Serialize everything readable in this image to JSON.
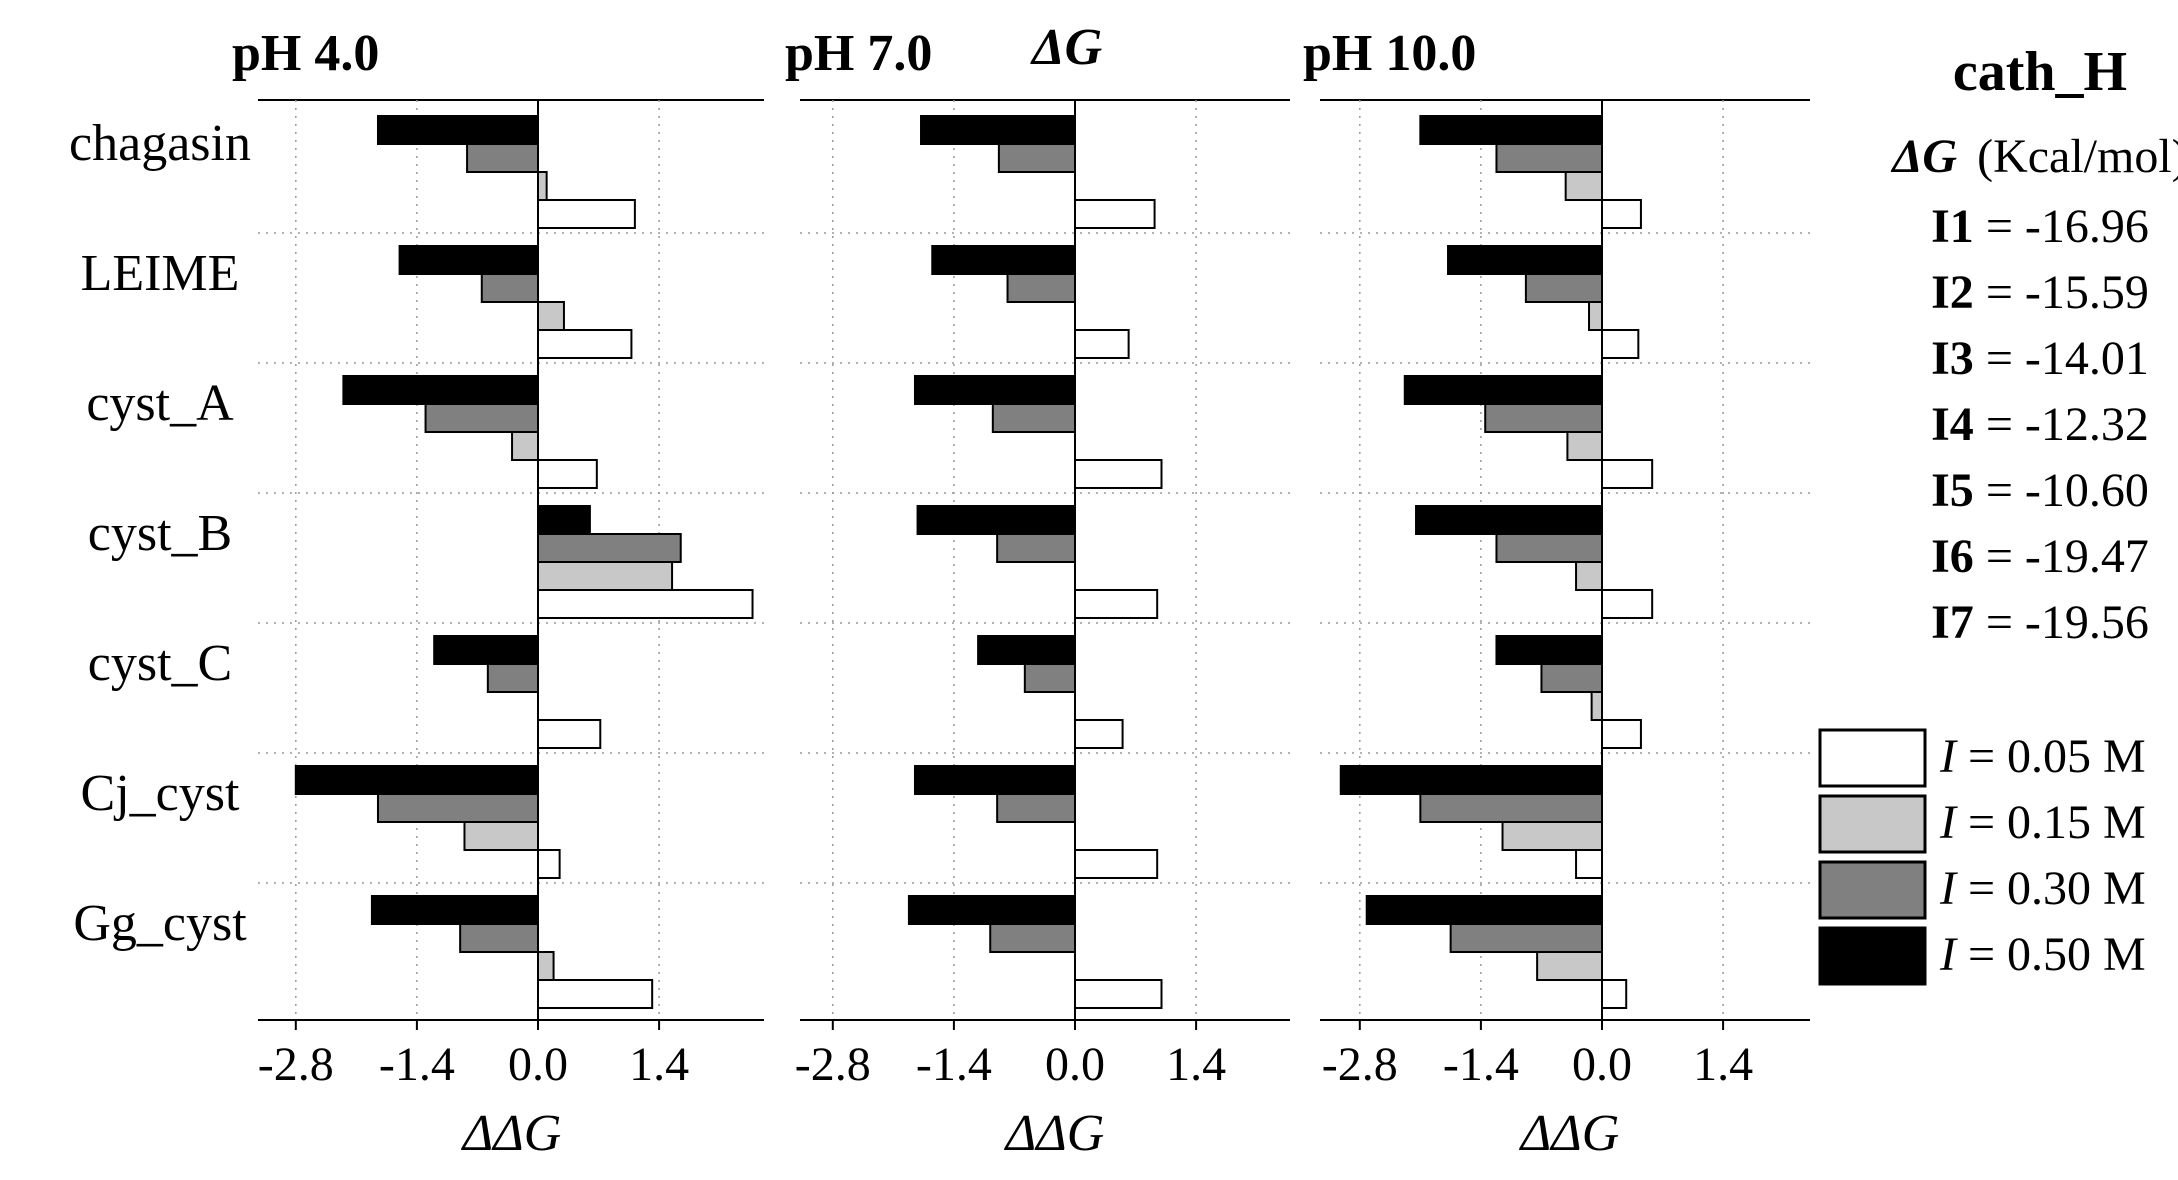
{
  "chart_data": [
    {
      "type": "bar",
      "orientation": "horizontal",
      "title": "pH 4.0",
      "xlabel": "ΔΔG",
      "xlim": [
        -3.0,
        2.5
      ],
      "xticks": [
        "-2.8",
        "-1.4",
        "0.0",
        "1.4"
      ],
      "categories": [
        "chagasin",
        "LEIME",
        "cyst_A",
        "cyst_B",
        "cyst_C",
        "Cj_cyst",
        "Gg_cyst"
      ],
      "series": [
        {
          "name": "I = 0.50 M",
          "values": [
            -1.85,
            -1.6,
            -2.25,
            0.6,
            -1.2,
            -2.8,
            -1.92
          ]
        },
        {
          "name": "I = 0.30 M",
          "values": [
            -0.82,
            -0.65,
            -1.3,
            1.65,
            -0.58,
            -1.85,
            -0.9
          ]
        },
        {
          "name": "I = 0.15 M",
          "values": [
            0.1,
            0.3,
            -0.3,
            1.55,
            0.0,
            -0.85,
            0.18
          ]
        },
        {
          "name": "I = 0.05 M",
          "values": [
            1.12,
            1.08,
            0.68,
            2.48,
            0.72,
            0.25,
            1.32
          ]
        }
      ]
    },
    {
      "type": "bar",
      "orientation": "horizontal",
      "title": "pH 7.0",
      "title2": "ΔG",
      "xlabel": "ΔΔG",
      "xlim": [
        -3.0,
        2.5
      ],
      "xticks": [
        "-2.8",
        "-1.4",
        "0.0",
        "1.4"
      ],
      "categories": [
        "chagasin",
        "LEIME",
        "cyst_A",
        "cyst_B",
        "cyst_C",
        "Cj_cyst",
        "Gg_cyst"
      ],
      "series": [
        {
          "name": "I = 0.50 M",
          "values": [
            -1.78,
            -1.65,
            -1.85,
            -1.82,
            -1.12,
            -1.85,
            -1.92
          ]
        },
        {
          "name": "I = 0.30 M",
          "values": [
            -0.88,
            -0.78,
            -0.95,
            -0.9,
            -0.58,
            -0.9,
            -0.98
          ]
        },
        {
          "name": "I = 0.15 M",
          "values": [
            0.0,
            0.0,
            0.0,
            0.0,
            0.0,
            0.0,
            0.0
          ]
        },
        {
          "name": "I = 0.05 M",
          "values": [
            0.92,
            0.62,
            1.0,
            0.95,
            0.55,
            0.95,
            1.0
          ]
        }
      ]
    },
    {
      "type": "bar",
      "orientation": "horizontal",
      "title": "pH 10.0",
      "xlabel": "ΔΔG",
      "xlim": [
        -3.0,
        2.5
      ],
      "xticks": [
        "-2.8",
        "-1.4",
        "0.0",
        "1.4"
      ],
      "categories": [
        "chagasin",
        "LEIME",
        "cyst_A",
        "cyst_B",
        "cyst_C",
        "Cj_cyst",
        "Gg_cyst"
      ],
      "series": [
        {
          "name": "I = 0.50 M",
          "values": [
            -2.1,
            -1.78,
            -2.28,
            -2.15,
            -1.22,
            -3.02,
            -2.72
          ]
        },
        {
          "name": "I = 0.30 M",
          "values": [
            -1.22,
            -0.88,
            -1.35,
            -1.22,
            -0.7,
            -2.1,
            -1.75
          ]
        },
        {
          "name": "I = 0.15 M",
          "values": [
            -0.42,
            -0.15,
            -0.4,
            -0.3,
            -0.12,
            -1.15,
            -0.75
          ]
        },
        {
          "name": "I = 0.05 M",
          "values": [
            0.45,
            0.42,
            0.58,
            0.58,
            0.45,
            -0.3,
            0.28
          ]
        }
      ]
    }
  ],
  "info": {
    "title": "cath_H",
    "subtitle_symbol": "ΔG",
    "subtitle_unit": "(Kcal/mol)",
    "entries": [
      {
        "label": "I1",
        "value": "= -16.96"
      },
      {
        "label": "I2",
        "value": "= -15.59"
      },
      {
        "label": "I3",
        "value": "= -14.01"
      },
      {
        "label": "I4",
        "value": "= -12.32"
      },
      {
        "label": "I5",
        "value": "= -10.60"
      },
      {
        "label": "I6",
        "value": "= -19.47"
      },
      {
        "label": "I7",
        "value": "= -19.56"
      }
    ]
  },
  "legend": [
    {
      "label_symbol": "I",
      "label_text": "= 0.05 M",
      "color": "#ffffff"
    },
    {
      "label_symbol": "I",
      "label_text": "= 0.15 M",
      "color": "#c8c8c8"
    },
    {
      "label_symbol": "I",
      "label_text": "= 0.30 M",
      "color": "#808080"
    },
    {
      "label_symbol": "I",
      "label_text": "= 0.50 M",
      "color": "#000000"
    }
  ],
  "series_colors": {
    "I = 0.50 M": "#000000",
    "I = 0.30 M": "#808080",
    "I = 0.15 M": "#c8c8c8",
    "I = 0.05 M": "#ffffff"
  }
}
